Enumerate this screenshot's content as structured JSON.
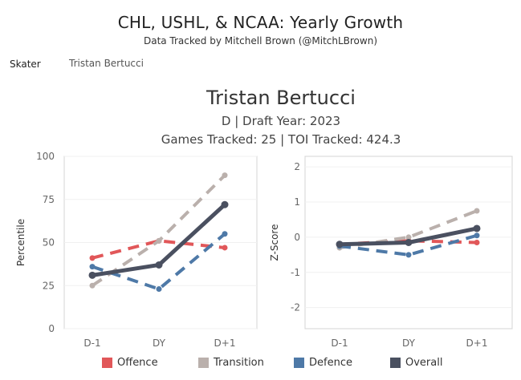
{
  "header": {
    "title": "CHL, USHL, & NCAA: Yearly Growth",
    "subtitle": "Data Tracked by Mitchell Brown (@MitchLBrown)"
  },
  "filter": {
    "label": "Skater",
    "value": "Tristan Bertucci"
  },
  "player": {
    "name": "Tristan Bertucci",
    "info_line": "D  | Draft Year: 2023",
    "tracked_line": "Games Tracked: 25 | TOI Tracked: 424.3"
  },
  "colors": {
    "Offence": "#e15759",
    "Transition": "#bab0ac",
    "Defence": "#4e79a7",
    "Overall": "#4a5060"
  },
  "chart_data": [
    {
      "type": "line",
      "categories": [
        "D-1",
        "DY",
        "D+1"
      ],
      "ylabel": "Percentile",
      "ylim": [
        0,
        100
      ],
      "yticks": [
        "0",
        "25",
        "50",
        "75",
        "100"
      ],
      "series": [
        {
          "name": "Offence",
          "values": [
            41,
            51,
            47
          ]
        },
        {
          "name": "Transition",
          "values": [
            25,
            51,
            89
          ]
        },
        {
          "name": "Defence",
          "values": [
            36,
            23,
            55
          ]
        },
        {
          "name": "Overall",
          "values": [
            31,
            37,
            72
          ]
        }
      ]
    },
    {
      "type": "line",
      "categories": [
        "D-1",
        "DY",
        "D+1"
      ],
      "ylabel": "Z-Score",
      "ylim": [
        -2.6,
        2.3
      ],
      "yticks": [
        "-2",
        "-1",
        "0",
        "1",
        "2"
      ],
      "series": [
        {
          "name": "Offence",
          "values": [
            -0.2,
            -0.1,
            -0.15
          ]
        },
        {
          "name": "Transition",
          "values": [
            -0.3,
            0.0,
            0.75
          ]
        },
        {
          "name": "Defence",
          "values": [
            -0.25,
            -0.5,
            0.05
          ]
        },
        {
          "name": "Overall",
          "values": [
            -0.2,
            -0.15,
            0.25
          ]
        }
      ]
    }
  ],
  "legend": [
    "Offence",
    "Transition",
    "Defence",
    "Overall"
  ]
}
